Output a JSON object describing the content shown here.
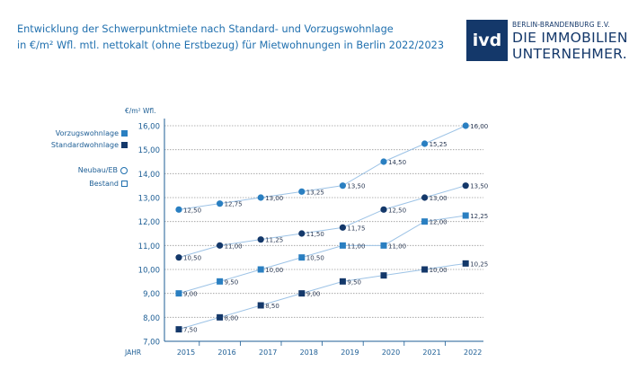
{
  "title": {
    "line1": "Entwicklung der Schwerpunktmiete nach Standard- und Vorzugswohnlage",
    "line2": "in €/m² Wfl. mtl. nettokalt (ohne Erstbezug) für Mietwohnungen in Berlin 2022/2023"
  },
  "logo": {
    "mark": "ivd",
    "sub": "BERLIN-BRANDENBURG E.V.",
    "line1": "DIE IMMOBILIEN",
    "line2": "UNTERNEHMER."
  },
  "legend": {
    "vorzug": "Vorzugswohnlage",
    "standard": "Standardwohnlage",
    "neubau": "Neubau/EB",
    "bestand": "Bestand"
  },
  "colors": {
    "title": "#1f6fae",
    "vorzug": "#2a7fc1",
    "standard": "#14386a",
    "line": "#9dc3e6",
    "grid": "#9a9a9a",
    "axis": "#1d5e95"
  },
  "chart_data": {
    "type": "line",
    "ylabel": "€/m² Wfl.",
    "xlabel": "JAHR",
    "ylim": [
      7.0,
      16.0
    ],
    "y_ticks": [
      "7,00",
      "8,00",
      "9,00",
      "10,00",
      "11,00",
      "12,00",
      "13,00",
      "14,00",
      "15,00",
      "16,00"
    ],
    "categories": [
      "2015",
      "2016",
      "2017",
      "2018",
      "2019",
      "2020",
      "2021",
      "2022"
    ],
    "series": [
      {
        "name": "Vorzugswohnlage Neubau/EB",
        "marker": "circle",
        "color": "vorzug",
        "values": [
          12.5,
          12.75,
          13.0,
          13.25,
          13.5,
          14.5,
          15.25,
          16.0
        ],
        "labels": [
          "12,50",
          "12,75",
          "13,00",
          "13,25",
          "13,50",
          "14,50",
          "15,25",
          "16,00"
        ]
      },
      {
        "name": "Standardwohnlage Neubau/EB",
        "marker": "circle",
        "color": "standard",
        "values": [
          10.5,
          11.0,
          11.25,
          11.5,
          11.75,
          12.5,
          13.0,
          13.5
        ],
        "labels": [
          "10,50",
          "11,00",
          "11,25",
          "11,50",
          "11,75",
          "12,50",
          "13,00",
          "13,50"
        ]
      },
      {
        "name": "Vorzugswohnlage Bestand",
        "marker": "square",
        "color": "vorzug",
        "values": [
          9.0,
          9.5,
          10.0,
          10.5,
          11.0,
          11.0,
          12.0,
          12.25
        ],
        "labels": [
          "9,00",
          "9,50",
          "10,00",
          "10,50",
          "11,00",
          "11,00",
          "12,00",
          "12,25"
        ]
      },
      {
        "name": "Standardwohnlage Bestand",
        "marker": "square",
        "color": "standard",
        "values": [
          7.5,
          8.0,
          8.5,
          9.0,
          9.5,
          9.75,
          10.0,
          10.25
        ],
        "labels": [
          "7,50",
          "8,00",
          "8,50",
          "9,00",
          "9,50",
          "",
          "10,00",
          "10,25"
        ]
      }
    ],
    "grid": true,
    "legend_position": "left"
  }
}
